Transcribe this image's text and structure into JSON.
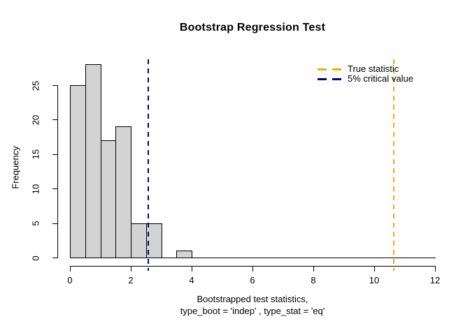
{
  "chart_data": {
    "type": "bar",
    "subtype": "histogram",
    "title": "Bootstrap Regression Test",
    "ylabel": "Frequency",
    "xlabel_line1": "Bootstrapped test statistics,",
    "xlabel_line2": "type_boot = 'indep' , type_stat = 'eq'",
    "bin_edges": [
      0,
      0.5,
      1,
      1.5,
      2,
      2.5,
      3,
      3.5,
      4
    ],
    "counts": [
      25,
      28,
      17,
      19,
      5,
      5,
      0,
      1
    ],
    "x_ticks": [
      0,
      2,
      4,
      6,
      8,
      10,
      12
    ],
    "y_ticks": [
      0,
      5,
      10,
      15,
      20,
      25
    ],
    "xlim": [
      0,
      12
    ],
    "ylim": [
      0,
      29
    ],
    "grid": false,
    "bar_fill": "#d3d3d3",
    "bar_border": "#000000",
    "axis_color": "#000000",
    "legend_position": "top-right",
    "vlines": [
      {
        "label": "True statistic",
        "x": 10.64,
        "color": "#ffa500",
        "style": "dashed"
      },
      {
        "label": "5% critical value",
        "x": 2.57,
        "color": "#000080",
        "style": "dashed"
      }
    ]
  }
}
